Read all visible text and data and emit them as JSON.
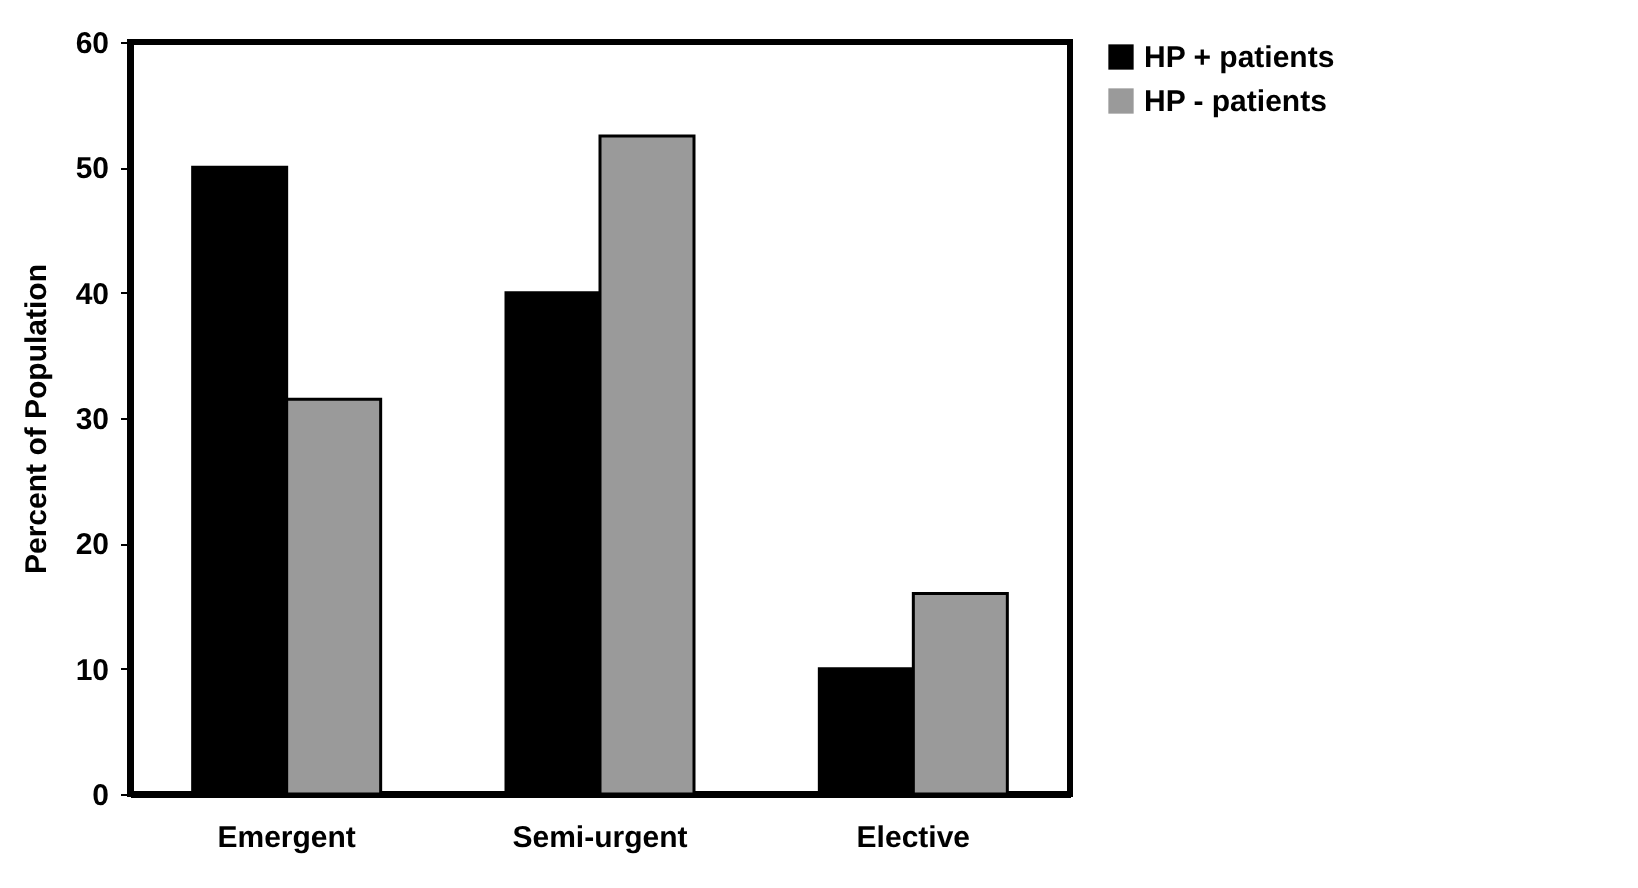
{
  "chart_data": {
    "type": "bar",
    "ylabel": "Percent of Population",
    "categories": [
      "Emergent",
      "Semi-urgent",
      "Elective"
    ],
    "series": [
      {
        "name": "HP + patients",
        "color": "#000000",
        "values": [
          50,
          40,
          10
        ]
      },
      {
        "name": "HP - patients",
        "color": "#9a9a9a",
        "values": [
          31.5,
          52.5,
          16
        ]
      }
    ],
    "ylim": [
      0,
      60
    ],
    "yticks": [
      0,
      10,
      20,
      30,
      40,
      50,
      60
    ],
    "grid": false,
    "legend": "right"
  }
}
